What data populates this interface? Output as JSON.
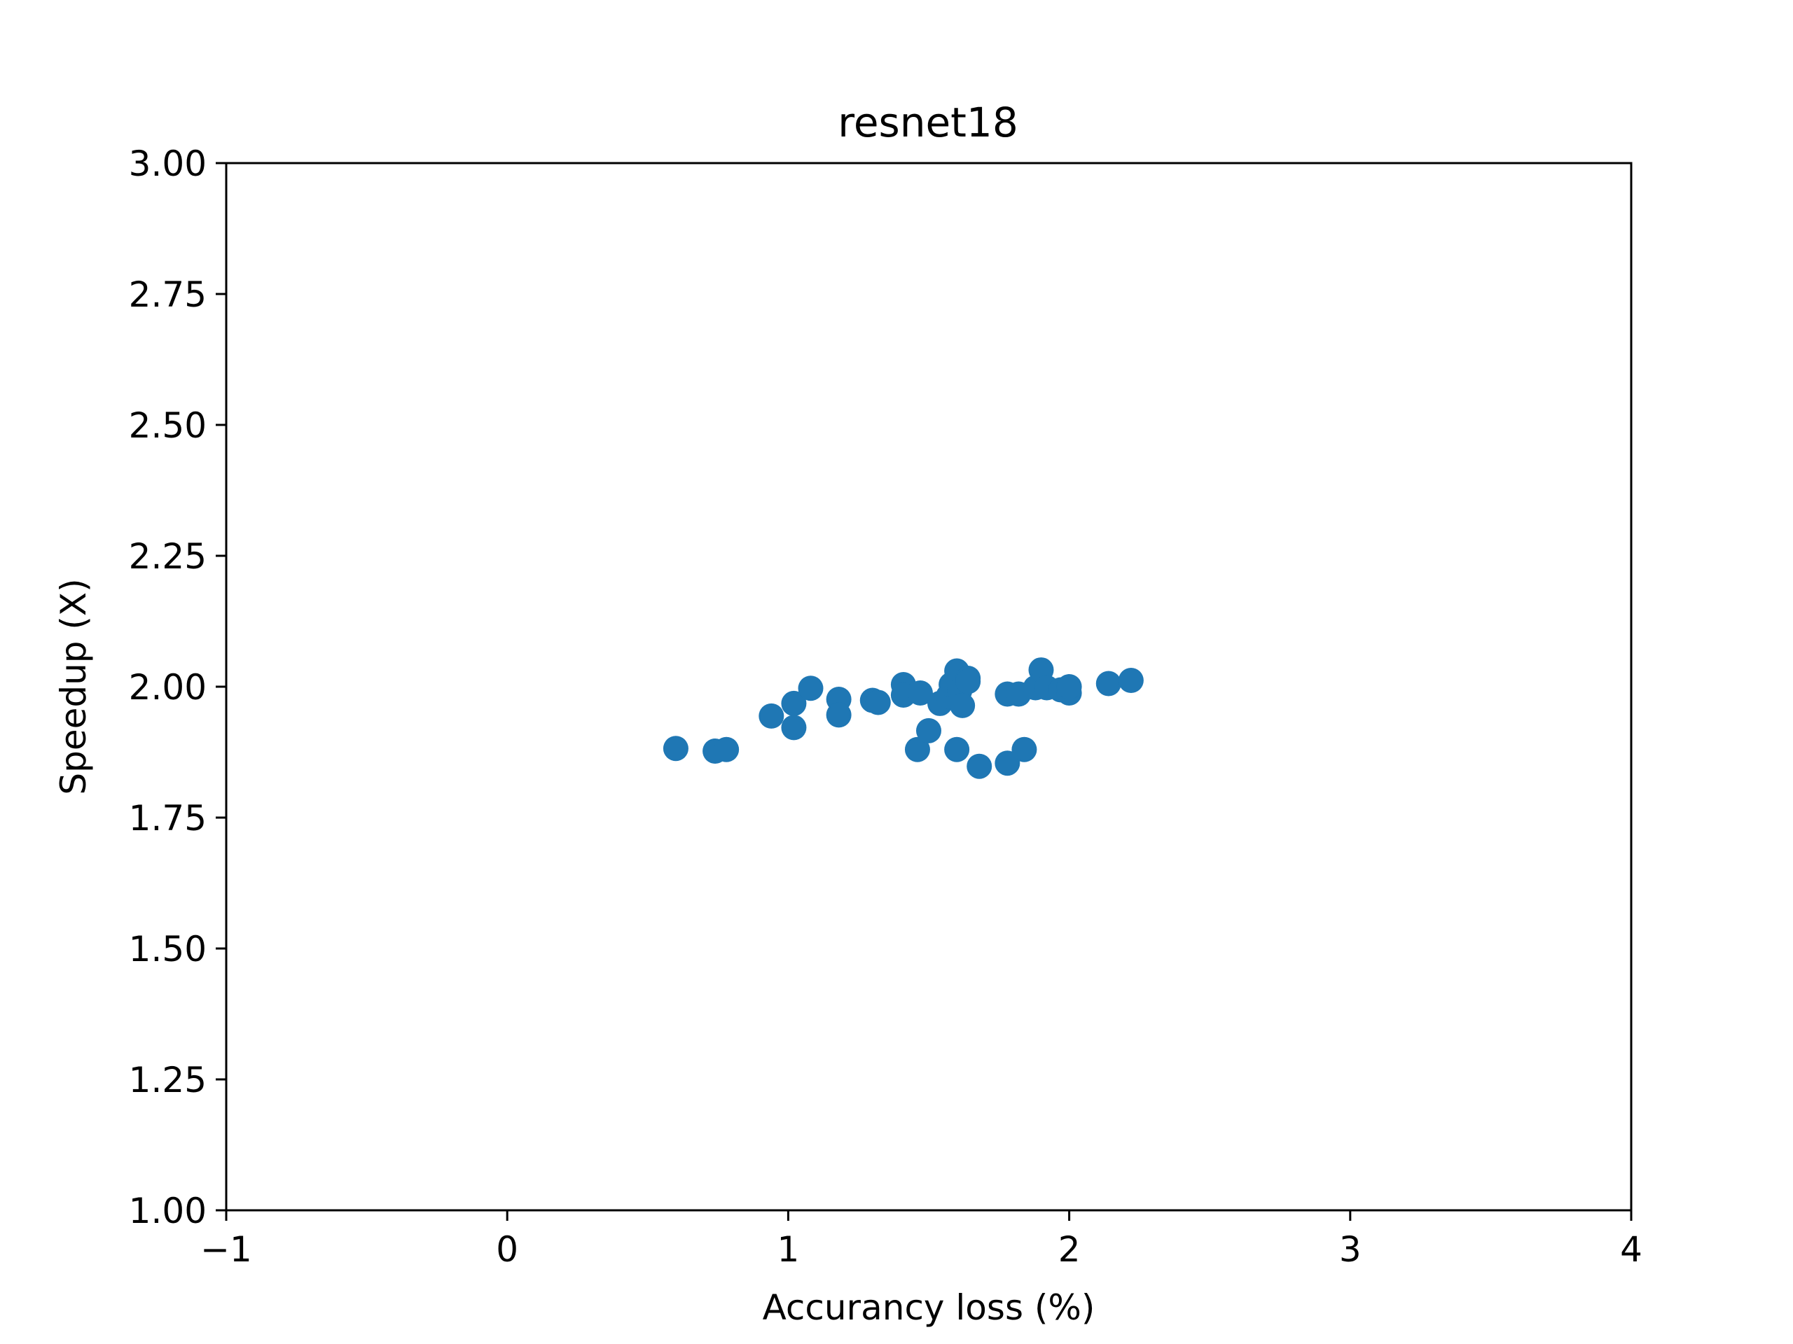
{
  "chart_data": {
    "type": "scatter",
    "title": "resnet18",
    "xlabel": "Accurancy loss (%)",
    "ylabel": "Speedup (X)",
    "xlim": [
      -1,
      4
    ],
    "ylim": [
      1.0,
      3.0
    ],
    "xticks": [
      -1,
      0,
      1,
      2,
      3,
      4
    ],
    "xtick_labels": [
      "−1",
      "0",
      "1",
      "2",
      "3",
      "4"
    ],
    "yticks": [
      1.0,
      1.25,
      1.5,
      1.75,
      2.0,
      2.25,
      2.5,
      2.75,
      3.0
    ],
    "ytick_labels": [
      "1.00",
      "1.25",
      "1.50",
      "1.75",
      "2.00",
      "2.25",
      "2.50",
      "2.75",
      "3.00"
    ],
    "grid": false,
    "marker_color": "#1f77b4",
    "points": [
      {
        "x": 0.6,
        "y": 1.882
      },
      {
        "x": 0.74,
        "y": 1.877
      },
      {
        "x": 0.78,
        "y": 1.88
      },
      {
        "x": 0.94,
        "y": 1.944
      },
      {
        "x": 1.02,
        "y": 1.968
      },
      {
        "x": 1.02,
        "y": 1.922
      },
      {
        "x": 1.08,
        "y": 1.997
      },
      {
        "x": 1.18,
        "y": 1.976
      },
      {
        "x": 1.18,
        "y": 1.946
      },
      {
        "x": 1.3,
        "y": 1.974
      },
      {
        "x": 1.32,
        "y": 1.97
      },
      {
        "x": 1.41,
        "y": 2.004
      },
      {
        "x": 1.41,
        "y": 1.984
      },
      {
        "x": 1.46,
        "y": 1.88
      },
      {
        "x": 1.47,
        "y": 1.988
      },
      {
        "x": 1.5,
        "y": 1.916
      },
      {
        "x": 1.54,
        "y": 1.968
      },
      {
        "x": 1.57,
        "y": 1.982
      },
      {
        "x": 1.58,
        "y": 2.004
      },
      {
        "x": 1.6,
        "y": 2.03
      },
      {
        "x": 1.6,
        "y": 1.88
      },
      {
        "x": 1.61,
        "y": 1.992
      },
      {
        "x": 1.62,
        "y": 1.964
      },
      {
        "x": 1.64,
        "y": 2.016
      },
      {
        "x": 1.64,
        "y": 2.01
      },
      {
        "x": 1.68,
        "y": 1.848
      },
      {
        "x": 1.78,
        "y": 1.986
      },
      {
        "x": 1.78,
        "y": 1.854
      },
      {
        "x": 1.82,
        "y": 1.986
      },
      {
        "x": 1.84,
        "y": 1.88
      },
      {
        "x": 1.88,
        "y": 1.998
      },
      {
        "x": 1.9,
        "y": 2.032
      },
      {
        "x": 1.92,
        "y": 1.998
      },
      {
        "x": 1.97,
        "y": 1.994
      },
      {
        "x": 2.0,
        "y": 1.988
      },
      {
        "x": 2.0,
        "y": 2.0
      },
      {
        "x": 2.14,
        "y": 2.006
      },
      {
        "x": 2.22,
        "y": 2.012
      }
    ]
  }
}
